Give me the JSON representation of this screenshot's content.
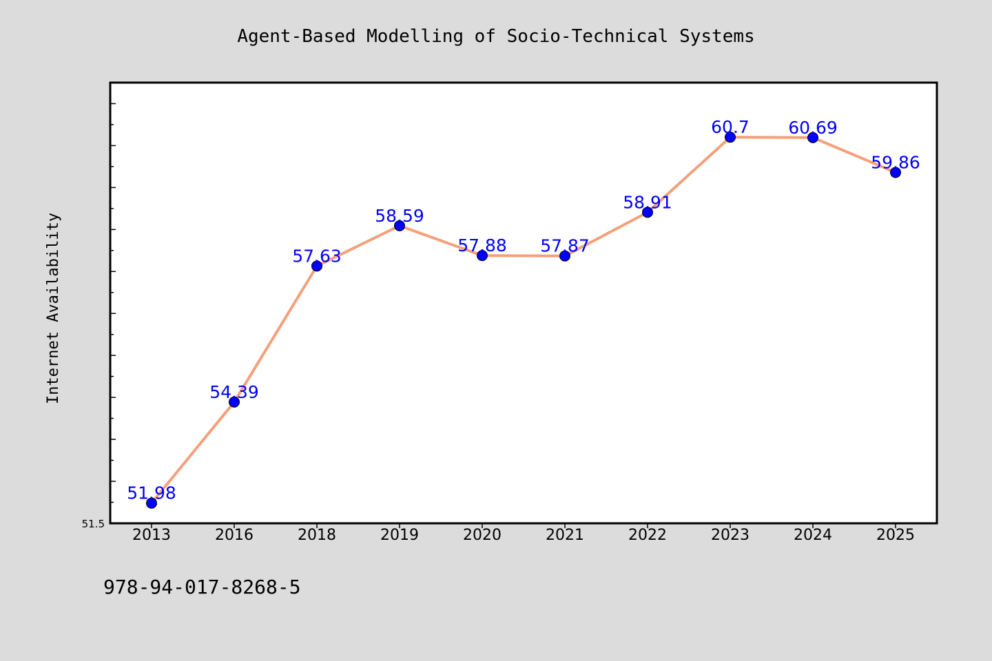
{
  "chart_data": {
    "type": "line",
    "title": "Agent-Based Modelling of Socio-Technical Systems",
    "ylabel": "Internet Availability",
    "xlabel": "",
    "categories": [
      "2013",
      "2016",
      "2018",
      "2019",
      "2020",
      "2021",
      "2022",
      "2023",
      "2024",
      "2025"
    ],
    "series": [
      {
        "values": [
          51.98,
          54.39,
          57.63,
          58.59,
          57.88,
          57.87,
          58.91,
          60.7,
          60.69,
          59.86
        ],
        "line_color": "#f4a07a",
        "marker_color": "#0000ff"
      }
    ],
    "data_labels": [
      "51.98",
      "54.39",
      "57.63",
      "58.59",
      "57.88",
      "57.87",
      "58.91",
      "60.7",
      "60.69",
      "59.86"
    ],
    "ylim": [
      51.5,
      62
    ],
    "ytick_labels": [
      "51.5"
    ],
    "grid": false,
    "legend": "none"
  },
  "footer": {
    "isbn": "978-94-017-8268-5"
  },
  "colors": {
    "background": "#dcdcdc",
    "plot_background": "#ffffff",
    "line": "#f4a07a",
    "marker": "#0000ff",
    "data_label": "#0000ff"
  }
}
